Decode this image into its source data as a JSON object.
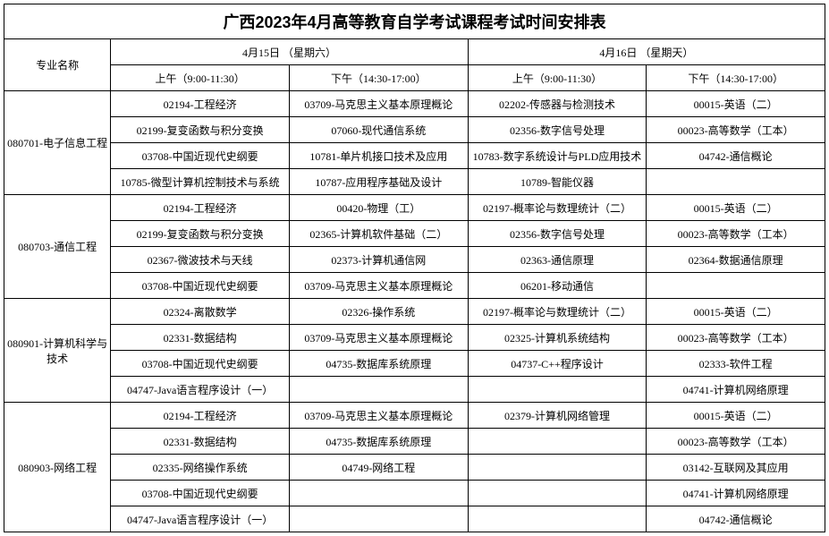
{
  "title": "广西2023年4月高等教育自学考试课程考试时间安排表",
  "header": {
    "major": "专业名称",
    "day1": "4月15日 （星期六）",
    "day2": "4月16日 （星期天）",
    "am": "上午（9:00-11:30）",
    "pm": "下午（14:30-17:00）"
  },
  "majors": [
    {
      "code": "080701-电子信息工程",
      "rows": [
        {
          "c1": "02194-工程经济",
          "c2": "03709-马克思主义基本原理概论",
          "c3": "02202-传感器与检测技术",
          "c4": "00015-英语（二）"
        },
        {
          "c1": "02199-复变函数与积分变换",
          "c2": "07060-现代通信系统",
          "c3": "02356-数字信号处理",
          "c4": "00023-高等数学（工本）"
        },
        {
          "c1": "03708-中国近现代史纲要",
          "c2": "10781-单片机接口技术及应用",
          "c3": "10783-数字系统设计与PLD应用技术",
          "c4": "04742-通信概论"
        },
        {
          "c1": "10785-微型计算机控制技术与系统",
          "c2": "10787-应用程序基础及设计",
          "c3": "10789-智能仪器",
          "c4": ""
        }
      ]
    },
    {
      "code": "080703-通信工程",
      "rows": [
        {
          "c1": "02194-工程经济",
          "c2": "00420-物理（工）",
          "c3": "02197-概率论与数理统计（二）",
          "c4": "00015-英语（二）"
        },
        {
          "c1": "02199-复变函数与积分变换",
          "c2": "02365-计算机软件基础（二）",
          "c3": "02356-数字信号处理",
          "c4": "00023-高等数学（工本）"
        },
        {
          "c1": "02367-微波技术与天线",
          "c2": "02373-计算机通信网",
          "c3": "02363-通信原理",
          "c4": "02364-数据通信原理"
        },
        {
          "c1": "03708-中国近现代史纲要",
          "c2": "03709-马克思主义基本原理概论",
          "c3": "06201-移动通信",
          "c4": ""
        }
      ]
    },
    {
      "code": "080901-计算机科学与技术",
      "rows": [
        {
          "c1": "02324-离散数学",
          "c2": "02326-操作系统",
          "c3": "02197-概率论与数理统计（二）",
          "c4": "00015-英语（二）"
        },
        {
          "c1": "02331-数据结构",
          "c2": "03709-马克思主义基本原理概论",
          "c3": "02325-计算机系统结构",
          "c4": "00023-高等数学（工本）"
        },
        {
          "c1": "03708-中国近现代史纲要",
          "c2": "04735-数据库系统原理",
          "c3": "04737-C++程序设计",
          "c4": "02333-软件工程"
        },
        {
          "c1": "04747-Java语言程序设计（一）",
          "c2": "",
          "c3": "",
          "c4": "04741-计算机网络原理"
        }
      ]
    },
    {
      "code": "080903-网络工程",
      "rows": [
        {
          "c1": "02194-工程经济",
          "c2": "03709-马克思主义基本原理概论",
          "c3": "02379-计算机网络管理",
          "c4": "00015-英语（二）"
        },
        {
          "c1": "02331-数据结构",
          "c2": "04735-数据库系统原理",
          "c3": "",
          "c4": "00023-高等数学（工本）"
        },
        {
          "c1": "02335-网络操作系统",
          "c2": "04749-网络工程",
          "c3": "",
          "c4": "03142-互联网及其应用"
        },
        {
          "c1": "03708-中国近现代史纲要",
          "c2": "",
          "c3": "",
          "c4": "04741-计算机网络原理"
        },
        {
          "c1": "04747-Java语言程序设计（一）",
          "c2": "",
          "c3": "",
          "c4": "04742-通信概论"
        }
      ]
    }
  ]
}
